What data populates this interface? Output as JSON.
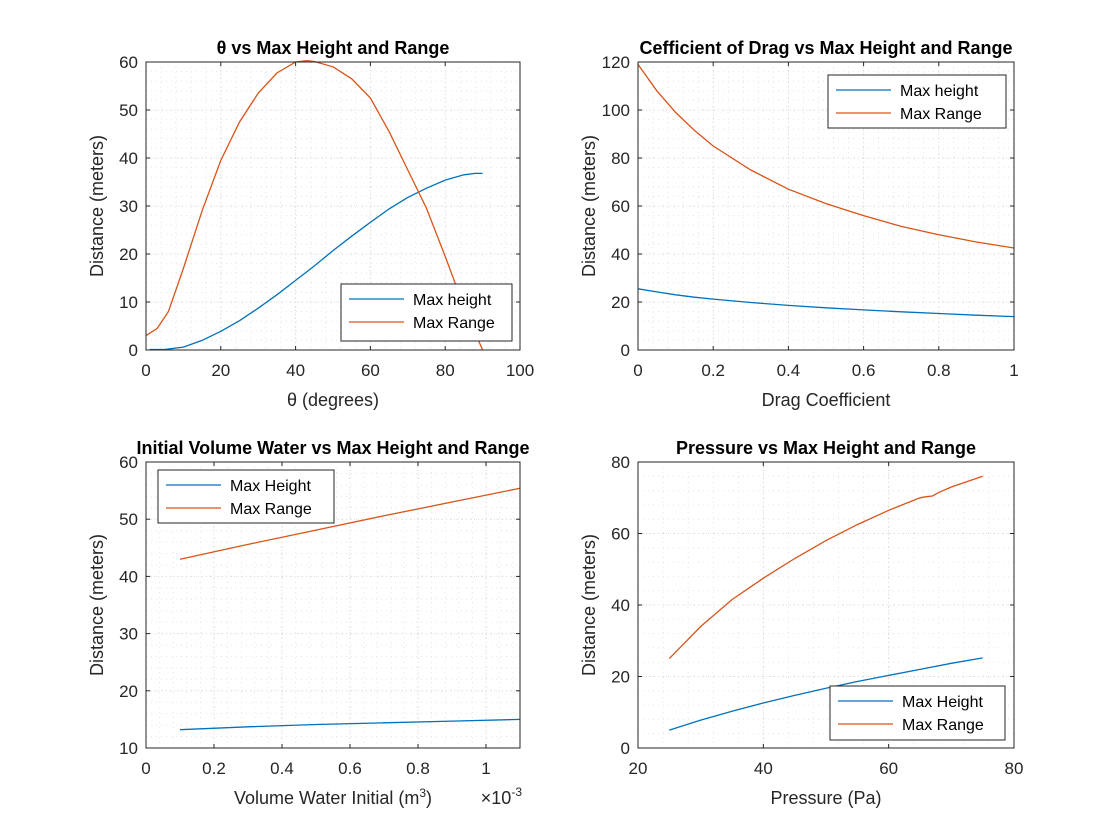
{
  "chart_data": [
    {
      "type": "line",
      "title": "θ vs Max Height and Range",
      "xlabel": "θ (degrees)",
      "ylabel": "Distance (meters)",
      "xlim": [
        0,
        100
      ],
      "ylim": [
        0,
        60
      ],
      "xticks": [
        0,
        20,
        40,
        60,
        80,
        100
      ],
      "yticks": [
        0,
        10,
        20,
        30,
        40,
        50,
        60
      ],
      "xticklabels": [
        "0",
        "20",
        "40",
        "60",
        "80",
        "100"
      ],
      "yticklabels": [
        "0",
        "10",
        "20",
        "30",
        "40",
        "50",
        "60"
      ],
      "legend_position": "bottom-right",
      "grid": "minor dotted",
      "series": [
        {
          "name": "Max height",
          "color": "#0072BD",
          "x": [
            1,
            5,
            10,
            15,
            20,
            25,
            30,
            35,
            40,
            45,
            50,
            55,
            60,
            65,
            70,
            75,
            80,
            85,
            88,
            90
          ],
          "y": [
            0.1,
            0.1,
            0.6,
            2.0,
            3.9,
            6.1,
            8.7,
            11.5,
            14.5,
            17.5,
            20.7,
            23.7,
            26.6,
            29.4,
            31.8,
            33.7,
            35.4,
            36.5,
            36.8,
            36.8
          ]
        },
        {
          "name": "Max Range",
          "color": "#D95319",
          "x": [
            0,
            3,
            6,
            10,
            15,
            20,
            25,
            30,
            35,
            40,
            43,
            45,
            50,
            55,
            60,
            65,
            70,
            75,
            80,
            85,
            90
          ],
          "y": [
            3,
            4.5,
            8,
            17,
            29,
            39.5,
            47.5,
            53.5,
            57.7,
            60,
            60.3,
            60.1,
            59,
            56.5,
            52.5,
            45.5,
            37.5,
            29.5,
            19.5,
            9,
            0
          ]
        }
      ]
    },
    {
      "type": "line",
      "title": "Cefficient of Drag vs Max Height and Range",
      "xlabel": "Drag Coefficient",
      "ylabel": "Distance (meters)",
      "xlim": [
        0,
        1
      ],
      "ylim": [
        0,
        120
      ],
      "xticks": [
        0,
        0.2,
        0.4,
        0.6,
        0.8,
        1
      ],
      "yticks": [
        0,
        20,
        40,
        60,
        80,
        100,
        120
      ],
      "xticklabels": [
        "0",
        "0.2",
        "0.4",
        "0.6",
        "0.8",
        "1"
      ],
      "yticklabels": [
        "0",
        "20",
        "40",
        "60",
        "80",
        "100",
        "120"
      ],
      "legend_position": "top-right",
      "grid": "minor dotted",
      "series": [
        {
          "name": "Max height",
          "color": "#0072BD",
          "x": [
            0,
            0.05,
            0.1,
            0.15,
            0.2,
            0.3,
            0.4,
            0.5,
            0.6,
            0.7,
            0.8,
            0.9,
            1.0
          ],
          "y": [
            25.5,
            24.2,
            23.0,
            22.0,
            21.2,
            19.8,
            18.6,
            17.6,
            16.7,
            15.9,
            15.2,
            14.5,
            13.9
          ]
        },
        {
          "name": "Max Range",
          "color": "#D95319",
          "x": [
            0,
            0.05,
            0.1,
            0.15,
            0.2,
            0.3,
            0.4,
            0.5,
            0.6,
            0.7,
            0.8,
            0.9,
            1.0
          ],
          "y": [
            119,
            108,
            99,
            91.5,
            85,
            75,
            67,
            61,
            56,
            51.5,
            48,
            45,
            42.5
          ]
        }
      ]
    },
    {
      "type": "line",
      "title": "Initial Volume Water vs Max Height and Range",
      "xlabel": "Volume Water Initial (m",
      "xlabel_superscript": "3",
      "xlabel_suffix": ")",
      "x_exponent_base": "×10",
      "x_exponent_power": "-3",
      "ylabel": "Distance (meters)",
      "xlim": [
        0,
        1.1
      ],
      "ylim": [
        10,
        60
      ],
      "xticks": [
        0,
        0.2,
        0.4,
        0.6,
        0.8,
        1
      ],
      "yticks": [
        10,
        20,
        30,
        40,
        50,
        60
      ],
      "xticklabels": [
        "0",
        "0.2",
        "0.4",
        "0.6",
        "0.8",
        "1"
      ],
      "yticklabels": [
        "10",
        "20",
        "30",
        "40",
        "50",
        "60"
      ],
      "legend_position": "top-left",
      "grid": "minor dotted",
      "series": [
        {
          "name": "Max Height",
          "color": "#0072BD",
          "x": [
            0.1,
            0.3,
            0.5,
            0.7,
            0.9,
            1.1
          ],
          "y": [
            13.2,
            13.7,
            14.1,
            14.4,
            14.7,
            15.0
          ]
        },
        {
          "name": "Max Range",
          "color": "#D95319",
          "x": [
            0.1,
            0.3,
            0.5,
            0.7,
            0.9,
            1.1
          ],
          "y": [
            43.0,
            45.6,
            48.1,
            50.6,
            53.0,
            55.4
          ]
        }
      ]
    },
    {
      "type": "line",
      "title": "Pressure vs Max Height and Range",
      "xlabel": "Pressure (Pa)",
      "ylabel": "Distance (meters)",
      "xlim": [
        20,
        80
      ],
      "ylim": [
        0,
        80
      ],
      "xticks": [
        20,
        40,
        60,
        80
      ],
      "yticks": [
        0,
        20,
        40,
        60,
        80
      ],
      "xticklabels": [
        "20",
        "40",
        "60",
        "80"
      ],
      "yticklabels": [
        "0",
        "20",
        "40",
        "60",
        "80"
      ],
      "legend_position": "bottom-right",
      "grid": "minor dotted",
      "series": [
        {
          "name": "Max Height",
          "color": "#0072BD",
          "x": [
            25,
            30,
            35,
            40,
            45,
            50,
            55,
            60,
            65,
            70,
            75
          ],
          "y": [
            5.0,
            7.8,
            10.3,
            12.6,
            14.7,
            16.7,
            18.6,
            20.3,
            22.0,
            23.7,
            25.2
          ]
        },
        {
          "name": "Max Range",
          "color": "#D95319",
          "x": [
            25,
            30,
            35,
            40,
            45,
            50,
            55,
            60,
            65,
            66,
            67,
            68,
            70,
            75
          ],
          "y": [
            25,
            34,
            41.5,
            47.5,
            53,
            58,
            62.5,
            66.5,
            70,
            70.3,
            70.5,
            71.5,
            73,
            76
          ]
        }
      ]
    }
  ]
}
